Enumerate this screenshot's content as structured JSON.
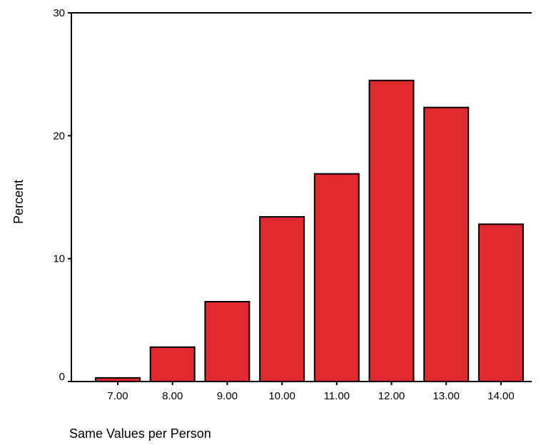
{
  "chart_data": {
    "type": "bar",
    "title": "",
    "xlabel": "Same Values per Person",
    "ylabel": "Percent",
    "categories": [
      "7.00",
      "8.00",
      "9.00",
      "10.00",
      "11.00",
      "12.00",
      "13.00",
      "14.00"
    ],
    "values": [
      0.3,
      2.8,
      6.5,
      13.4,
      16.9,
      24.5,
      22.3,
      12.8
    ],
    "ylim": [
      0,
      30
    ],
    "yticks": [
      "0",
      "10",
      "20",
      "30"
    ],
    "grid": false,
    "legend": "none",
    "bar_color": "#e0292f",
    "edge_color": "#000000"
  }
}
